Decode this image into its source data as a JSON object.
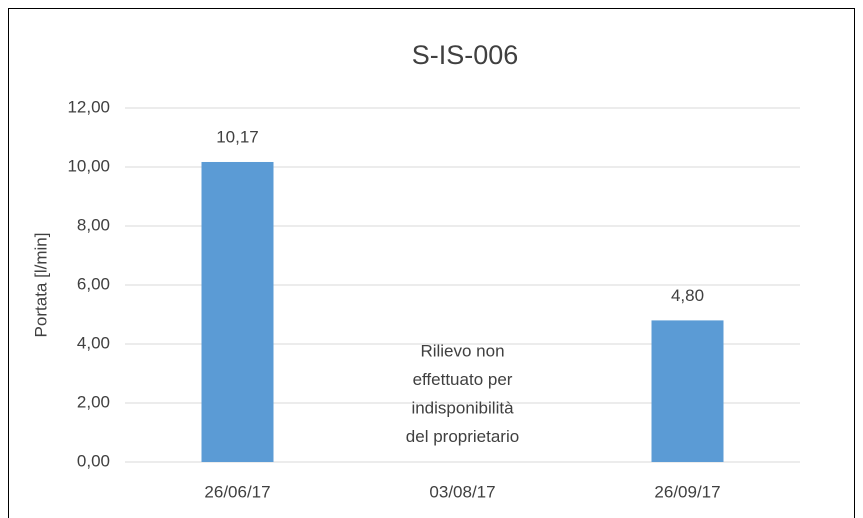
{
  "chart_data": {
    "type": "bar",
    "title": "S-IS-006",
    "y_label": "Portata [l/min]",
    "categories": [
      "26/06/17",
      "03/08/17",
      "26/09/17"
    ],
    "values": [
      10.17,
      null,
      4.8
    ],
    "value_labels": [
      "10,17",
      null,
      "4,80"
    ],
    "color": "#5b9bd5",
    "ylim": [
      0,
      12
    ],
    "yticks": [
      {
        "value": 0,
        "label": "0,00"
      },
      {
        "value": 2,
        "label": "2,00"
      },
      {
        "value": 4,
        "label": "4,00"
      },
      {
        "value": 6,
        "label": "6,00"
      },
      {
        "value": 8,
        "label": "8,00"
      },
      {
        "value": 10,
        "label": "10,00"
      },
      {
        "value": 12,
        "label": "12,00"
      }
    ],
    "grid": true,
    "annotation": {
      "category": 1,
      "lines": [
        "Rilievo non",
        "effettuato per",
        "indisponibilità",
        "del proprietario"
      ]
    }
  }
}
